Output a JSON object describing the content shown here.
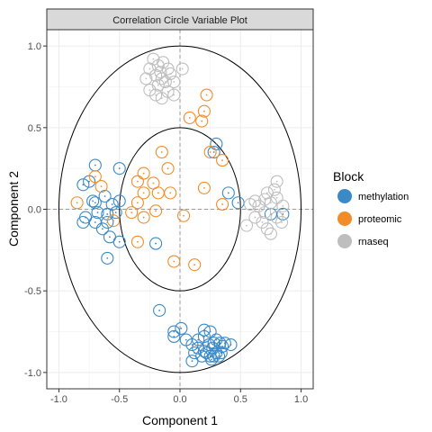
{
  "chart_data": {
    "type": "scatter",
    "title": "Correlation Circle Variable Plot",
    "xlabel": "Component  1",
    "ylabel": "Component  2",
    "xlim": [
      -1.1,
      1.1
    ],
    "ylim": [
      -1.1,
      1.1
    ],
    "x_ticks": [
      -1.0,
      -0.5,
      0.0,
      0.5,
      1.0
    ],
    "y_ticks": [
      -1.0,
      -0.5,
      0.0,
      0.5,
      1.0
    ],
    "x_tick_labels": [
      "-1.0",
      "-0.5",
      "0.0",
      "0.5",
      "1.0"
    ],
    "y_tick_labels": [
      "-1.0",
      "-0.5",
      "0.0",
      "0.5",
      "1.0"
    ],
    "grid": true,
    "circles": [
      1.0,
      0.5
    ],
    "reference_lines": {
      "x": 0,
      "y": 0
    },
    "legend": {
      "title": "Block",
      "position": "right"
    },
    "series": [
      {
        "name": "methylation",
        "color": "#3a8ac8",
        "points": [
          [
            -0.7,
            0.27
          ],
          [
            -0.5,
            0.25
          ],
          [
            -0.8,
            0.15
          ],
          [
            -0.75,
            0.17
          ],
          [
            -0.72,
            0.05
          ],
          [
            -0.7,
            0.04
          ],
          [
            -0.62,
            0.08
          ],
          [
            -0.56,
            0.03
          ],
          [
            -0.5,
            0.05
          ],
          [
            -0.53,
            -0.02
          ],
          [
            -0.6,
            -0.03
          ],
          [
            -0.68,
            -0.02
          ],
          [
            -0.78,
            -0.05
          ],
          [
            -0.8,
            -0.08
          ],
          [
            -0.7,
            -0.08
          ],
          [
            -0.6,
            -0.08
          ],
          [
            -0.64,
            -0.12
          ],
          [
            -0.58,
            -0.17
          ],
          [
            -0.5,
            -0.2
          ],
          [
            -0.6,
            -0.3
          ],
          [
            -0.2,
            -0.21
          ],
          [
            0.3,
            0.4
          ],
          [
            0.28,
            0.35
          ],
          [
            0.4,
            0.1
          ],
          [
            0.48,
            0.04
          ],
          [
            0.75,
            -0.03
          ],
          [
            0.85,
            -0.03
          ],
          [
            -0.17,
            -0.62
          ],
          [
            -0.05,
            -0.78
          ],
          [
            -0.05,
            -0.75
          ],
          [
            0.01,
            -0.73
          ],
          [
            0.05,
            -0.8
          ],
          [
            0.1,
            -0.83
          ],
          [
            0.15,
            -0.8
          ],
          [
            0.2,
            -0.78
          ],
          [
            0.24,
            -0.83
          ],
          [
            0.28,
            -0.82
          ],
          [
            0.3,
            -0.8
          ],
          [
            0.33,
            -0.82
          ],
          [
            0.35,
            -0.84
          ],
          [
            0.37,
            -0.82
          ],
          [
            0.42,
            -0.83
          ],
          [
            0.15,
            -0.85
          ],
          [
            0.2,
            -0.87
          ],
          [
            0.22,
            -0.88
          ],
          [
            0.25,
            -0.9
          ],
          [
            0.26,
            -0.92
          ],
          [
            0.28,
            -0.9
          ],
          [
            0.3,
            -0.88
          ],
          [
            0.32,
            -0.9
          ],
          [
            0.34,
            -0.88
          ],
          [
            0.27,
            -0.85
          ],
          [
            0.18,
            -0.9
          ],
          [
            0.12,
            -0.88
          ],
          [
            0.1,
            -0.93
          ],
          [
            0.2,
            -0.74
          ],
          [
            0.25,
            -0.75
          ]
        ]
      },
      {
        "name": "proteomic",
        "color": "#f28c28",
        "points": [
          [
            0.22,
            0.7
          ],
          [
            0.2,
            0.6
          ],
          [
            0.08,
            0.56
          ],
          [
            0.18,
            0.54
          ],
          [
            -0.15,
            0.35
          ],
          [
            0.25,
            0.35
          ],
          [
            0.35,
            0.3
          ],
          [
            -0.3,
            0.22
          ],
          [
            -0.35,
            0.17
          ],
          [
            -0.22,
            0.16
          ],
          [
            -0.18,
            0.1
          ],
          [
            -0.3,
            0.1
          ],
          [
            0.2,
            0.13
          ],
          [
            -0.08,
            0.1
          ],
          [
            -0.35,
            0.04
          ],
          [
            0.35,
            0.03
          ],
          [
            -0.85,
            0.04
          ],
          [
            -0.65,
            0.14
          ],
          [
            -0.4,
            -0.02
          ],
          [
            -0.3,
            -0.05
          ],
          [
            -0.35,
            -0.2
          ],
          [
            -0.55,
            -0.07
          ],
          [
            0.03,
            -0.04
          ],
          [
            -0.05,
            -0.32
          ],
          [
            0.12,
            -0.34
          ],
          [
            -0.1,
            0.25
          ],
          [
            -0.2,
            -0.01
          ],
          [
            -0.7,
            0.2
          ]
        ]
      },
      {
        "name": "rnaseq",
        "color": "#bebebe",
        "points": [
          [
            -0.22,
            0.92
          ],
          [
            -0.18,
            0.88
          ],
          [
            -0.14,
            0.9
          ],
          [
            -0.1,
            0.86
          ],
          [
            -0.16,
            0.84
          ],
          [
            -0.2,
            0.82
          ],
          [
            -0.25,
            0.86
          ],
          [
            -0.28,
            0.8
          ],
          [
            -0.15,
            0.8
          ],
          [
            -0.12,
            0.78
          ],
          [
            -0.08,
            0.83
          ],
          [
            -0.05,
            0.78
          ],
          [
            0.02,
            0.86
          ],
          [
            -0.18,
            0.76
          ],
          [
            -0.1,
            0.72
          ],
          [
            -0.2,
            0.7
          ],
          [
            -0.15,
            0.68
          ],
          [
            -0.05,
            0.7
          ],
          [
            -0.25,
            0.73
          ],
          [
            0.58,
            0.03
          ],
          [
            0.62,
            0.05
          ],
          [
            0.65,
            0.02
          ],
          [
            0.7,
            0.06
          ],
          [
            0.72,
            0.1
          ],
          [
            0.78,
            0.12
          ],
          [
            0.8,
            0.17
          ],
          [
            0.75,
            0.04
          ],
          [
            0.7,
            -0.02
          ],
          [
            0.62,
            -0.05
          ],
          [
            0.55,
            -0.1
          ],
          [
            0.68,
            -0.08
          ],
          [
            0.72,
            -0.12
          ],
          [
            0.75,
            -0.15
          ],
          [
            0.8,
            -0.05
          ],
          [
            0.84,
            -0.08
          ],
          [
            0.85,
            0.02
          ],
          [
            0.8,
            0.07
          ]
        ]
      }
    ]
  }
}
